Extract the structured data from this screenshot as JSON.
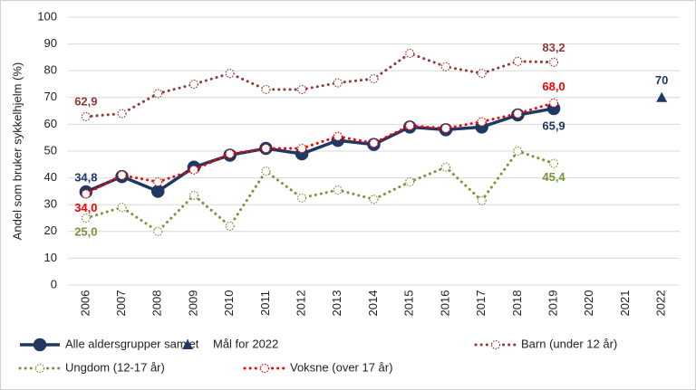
{
  "chart_data": {
    "type": "line",
    "y_label": "Andel som bruker sykkelhjelm (%)",
    "categories": [
      "2006",
      "2007",
      "2008",
      "2009",
      "2010",
      "2011",
      "2012",
      "2013",
      "2014",
      "2015",
      "2016",
      "2017",
      "2018",
      "2019",
      "2020",
      "2021",
      "2022"
    ],
    "ylim": [
      0,
      100
    ],
    "yticks": [
      0,
      10,
      20,
      30,
      40,
      50,
      60,
      70,
      80,
      90,
      100
    ],
    "grid": true,
    "series": [
      {
        "name": "Alle aldersgrupper samlet",
        "color": "#1f3864",
        "line": "solid",
        "marker": "circle",
        "values": [
          34.8,
          40.5,
          35,
          44,
          48.5,
          51,
          49,
          54,
          52.5,
          59,
          58,
          59,
          63.5,
          65.9,
          null,
          null,
          null
        ],
        "value_labels": [
          "34,8",
          null,
          null,
          null,
          null,
          null,
          null,
          null,
          null,
          null,
          null,
          null,
          null,
          "65,9",
          null,
          null,
          null
        ]
      },
      {
        "name": "Mål for 2022",
        "color": "#1f3864",
        "line": "none",
        "marker": "triangle",
        "values": [
          null,
          null,
          null,
          null,
          null,
          null,
          null,
          null,
          null,
          null,
          null,
          null,
          null,
          null,
          null,
          null,
          70
        ]
      },
      {
        "name": "Barn (under 12 år)",
        "color": "#943634",
        "line": "dotted",
        "marker": "hollow",
        "values": [
          62.9,
          64,
          71.5,
          75,
          79,
          73,
          73,
          75.5,
          77,
          86.5,
          81.5,
          79,
          83.5,
          83.2,
          null,
          null,
          null
        ],
        "value_labels": [
          "62,9",
          null,
          null,
          null,
          null,
          null,
          null,
          null,
          null,
          null,
          null,
          null,
          null,
          "83,2",
          null,
          null,
          null
        ]
      },
      {
        "name": "Ungdom (12-17 år)",
        "color": "#77933c",
        "line": "dotted",
        "marker": "hollow",
        "values": [
          25.0,
          29,
          20,
          33.5,
          22,
          42.5,
          32.5,
          35.5,
          32,
          38.5,
          44,
          31.5,
          50,
          45.4,
          null,
          null,
          null
        ],
        "value_labels": [
          "25,0",
          null,
          null,
          null,
          null,
          null,
          null,
          null,
          null,
          null,
          null,
          null,
          null,
          "45,4",
          null,
          null,
          null
        ]
      },
      {
        "name": "Voksne (over 17 år)",
        "color": "#ff0000",
        "line": "dotted",
        "marker": "hollow",
        "values": [
          34.0,
          41,
          38.5,
          43,
          49,
          51,
          51,
          55.5,
          53,
          59.5,
          58.5,
          61,
          64,
          68.0,
          null,
          null,
          null
        ],
        "value_labels": [
          "34,0",
          null,
          null,
          null,
          null,
          null,
          null,
          null,
          null,
          null,
          null,
          null,
          null,
          "68,0",
          null,
          null,
          null
        ]
      }
    ]
  }
}
